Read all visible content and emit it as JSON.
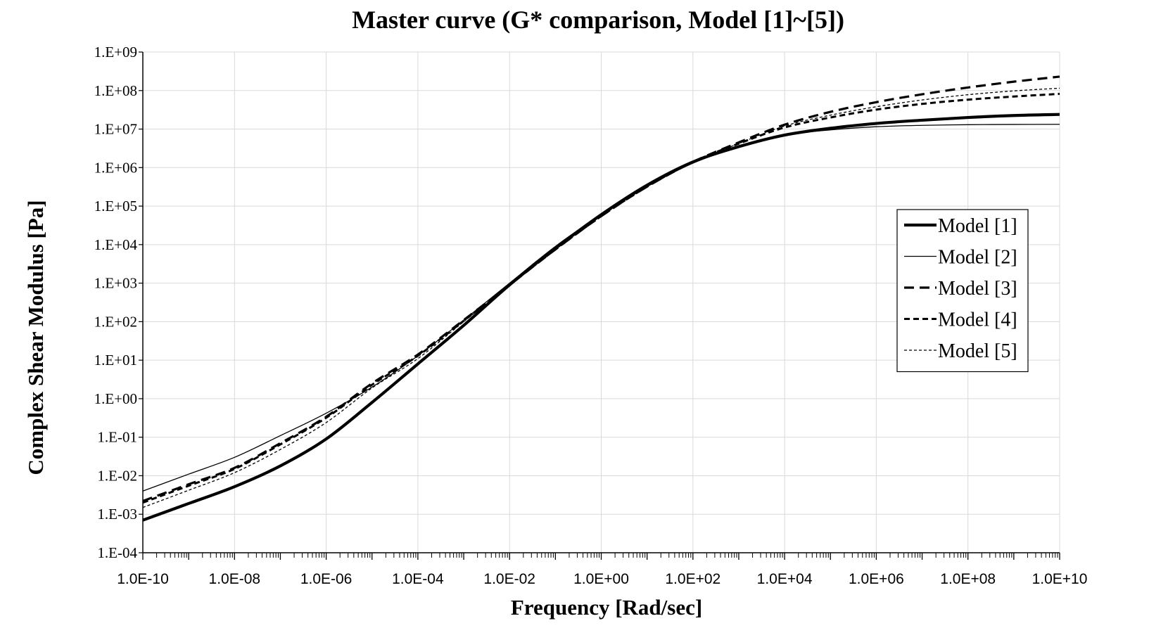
{
  "chart_data": {
    "type": "line",
    "title": "Master curve (G* comparison, Model [1]~[5])",
    "xlabel": "Frequency [Rad/sec]",
    "ylabel": "Complex Shear Modulus [Pa]",
    "x_scale": "log",
    "y_scale": "log",
    "xlim": [
      1e-10,
      10000000000.0
    ],
    "ylim": [
      0.0001,
      1000000000.0
    ],
    "grid": true,
    "legend_position": "right",
    "x_tick_labels": [
      "1.0E-10",
      "1.0E-08",
      "1.0E-06",
      "1.0E-04",
      "1.0E-02",
      "1.0E+00",
      "1.0E+02",
      "1.0E+04",
      "1.0E+06",
      "1.0E+08",
      "1.0E+10"
    ],
    "y_tick_labels": [
      "1.E-04",
      "1.E-03",
      "1.E-02",
      "1.E-01",
      "1.E+00",
      "1.E+01",
      "1.E+02",
      "1.E+03",
      "1.E+04",
      "1.E+05",
      "1.E+06",
      "1.E+07",
      "1.E+08",
      "1.E+09"
    ],
    "colors": {
      "line": "#000000",
      "grid": "#d9d9d9",
      "axis": "#000000",
      "background": "#ffffff"
    },
    "x": [
      1e-10,
      1e-09,
      1e-08,
      1e-07,
      1e-06,
      1e-05,
      0.0001,
      0.001,
      0.01,
      0.1,
      1.0,
      10.0,
      100.0,
      1000.0,
      10000.0,
      100000.0,
      1000000.0,
      10000000.0,
      100000000.0,
      1000000000.0,
      10000000000.0
    ],
    "series": [
      {
        "name": "Model [1]",
        "line_style": "solid-thick",
        "values": [
          0.0007,
          0.0019,
          0.0052,
          0.018,
          0.09,
          0.8,
          8.0,
          80,
          900,
          8000,
          60000,
          350000,
          1400000,
          3500000,
          7000000,
          10500000,
          14000000,
          17000000,
          20000000,
          22500000,
          24000000
        ]
      },
      {
        "name": "Model [2]",
        "line_style": "solid-thin",
        "values": [
          0.004,
          0.011,
          0.03,
          0.11,
          0.42,
          2.0,
          13,
          110,
          1000,
          9000,
          60000,
          320000,
          1300000,
          3500000,
          7000000,
          9500000,
          11500000,
          12500000,
          13000000,
          13200000,
          13300000
        ]
      },
      {
        "name": "Model [3]",
        "line_style": "dashed-thick",
        "values": [
          0.0022,
          0.006,
          0.016,
          0.07,
          0.34,
          2.5,
          14,
          110,
          900,
          7500,
          55000,
          320000,
          1400000,
          4500000,
          13000000,
          28000000,
          50000000,
          80000000,
          120000000,
          170000000,
          230000000
        ]
      },
      {
        "name": "Model [4]",
        "line_style": "dashed-medium",
        "values": [
          0.002,
          0.0055,
          0.015,
          0.065,
          0.32,
          2.3,
          13,
          105,
          900,
          7500,
          55000,
          320000,
          1400000,
          4200000,
          11000000,
          20000000,
          32000000,
          45000000,
          58000000,
          70000000,
          82000000
        ]
      },
      {
        "name": "Model [5]",
        "line_style": "dotted-thin",
        "values": [
          0.0015,
          0.0042,
          0.012,
          0.048,
          0.24,
          1.9,
          11,
          100,
          900,
          7500,
          55000,
          320000,
          1400000,
          4200000,
          12000000,
          23000000,
          38000000,
          57000000,
          78000000,
          98000000,
          115000000
        ]
      }
    ]
  }
}
